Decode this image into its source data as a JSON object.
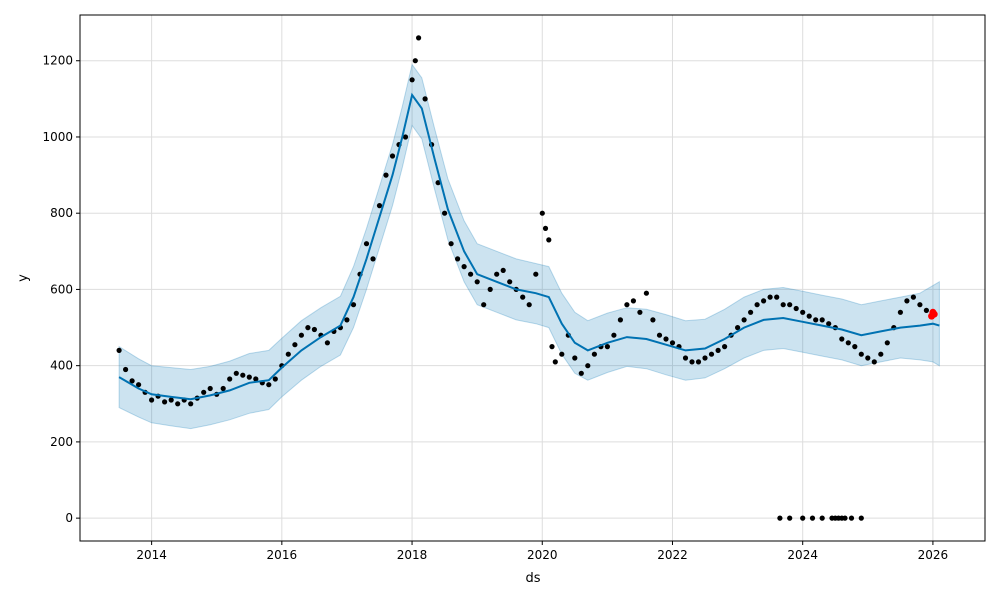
{
  "chart_data": {
    "type": "line",
    "title": "",
    "xlabel": "ds",
    "ylabel": "y",
    "xlim": [
      2012.9,
      2026.8
    ],
    "ylim": [
      -60,
      1320
    ],
    "grid": true,
    "x_ticks": [
      {
        "value": 2014,
        "label": "2014"
      },
      {
        "value": 2016,
        "label": "2016"
      },
      {
        "value": 2018,
        "label": "2018"
      },
      {
        "value": 2020,
        "label": "2020"
      },
      {
        "value": 2022,
        "label": "2022"
      },
      {
        "value": 2024,
        "label": "2024"
      },
      {
        "value": 2026,
        "label": "2026"
      }
    ],
    "y_ticks": [
      {
        "value": 0,
        "label": "0"
      },
      {
        "value": 200,
        "label": "200"
      },
      {
        "value": 400,
        "label": "400"
      },
      {
        "value": 600,
        "label": "600"
      },
      {
        "value": 800,
        "label": "800"
      },
      {
        "value": 1000,
        "label": "1000"
      },
      {
        "value": 1200,
        "label": "1200"
      }
    ],
    "colors": {
      "forecast_line": "#0072B2",
      "uncertainty_band": "#0072B2",
      "observed_points": "#000000",
      "highlight_points": "#ff0000",
      "grid": "#dddddd"
    },
    "series": [
      {
        "role": "forecast",
        "x": [
          2013.5,
          2013.8,
          2014.0,
          2014.3,
          2014.6,
          2014.9,
          2015.2,
          2015.5,
          2015.8,
          2016.0,
          2016.3,
          2016.6,
          2016.9,
          2017.1,
          2017.3,
          2017.5,
          2017.7,
          2017.85,
          2018.0,
          2018.15,
          2018.35,
          2018.55,
          2018.8,
          2019.0,
          2019.3,
          2019.6,
          2019.9,
          2020.1,
          2020.3,
          2020.5,
          2020.7,
          2021.0,
          2021.3,
          2021.6,
          2021.9,
          2022.2,
          2022.5,
          2022.8,
          2023.1,
          2023.4,
          2023.7,
          2024.0,
          2024.3,
          2024.6,
          2024.9,
          2025.2,
          2025.5,
          2025.8,
          2026.0,
          2026.1
        ],
        "y": [
          370,
          340,
          325,
          318,
          312,
          322,
          335,
          355,
          362,
          395,
          440,
          475,
          505,
          580,
          680,
          790,
          900,
          1000,
          1110,
          1075,
          940,
          810,
          700,
          640,
          620,
          600,
          590,
          580,
          510,
          460,
          440,
          460,
          475,
          470,
          455,
          440,
          445,
          470,
          500,
          520,
          525,
          515,
          505,
          495,
          480,
          490,
          500,
          505,
          510,
          505
        ],
        "lower": [
          290,
          265,
          250,
          242,
          235,
          245,
          258,
          275,
          285,
          318,
          362,
          398,
          428,
          500,
          600,
          710,
          820,
          920,
          1030,
          995,
          860,
          730,
          620,
          560,
          540,
          520,
          510,
          500,
          430,
          380,
          362,
          382,
          398,
          392,
          376,
          362,
          368,
          392,
          420,
          440,
          445,
          435,
          425,
          415,
          400,
          410,
          420,
          415,
          410,
          400
        ],
        "upper": [
          450,
          418,
          400,
          395,
          390,
          398,
          412,
          432,
          440,
          472,
          518,
          552,
          582,
          660,
          760,
          870,
          980,
          1080,
          1190,
          1155,
          1020,
          890,
          780,
          720,
          700,
          680,
          668,
          660,
          590,
          540,
          518,
          538,
          552,
          548,
          534,
          518,
          522,
          548,
          580,
          600,
          605,
          595,
          585,
          575,
          560,
          570,
          580,
          590,
          610,
          620
        ]
      },
      {
        "role": "observed",
        "x": [
          2013.5,
          2013.6,
          2013.7,
          2013.8,
          2013.9,
          2014.0,
          2014.1,
          2014.2,
          2014.3,
          2014.4,
          2014.5,
          2014.6,
          2014.7,
          2014.8,
          2014.9,
          2015.0,
          2015.1,
          2015.2,
          2015.3,
          2015.4,
          2015.5,
          2015.6,
          2015.7,
          2015.8,
          2015.9,
          2016.0,
          2016.1,
          2016.2,
          2016.3,
          2016.4,
          2016.5,
          2016.6,
          2016.7,
          2016.8,
          2016.9,
          2017.0,
          2017.1,
          2017.2,
          2017.3,
          2017.4,
          2017.5,
          2017.6,
          2017.7,
          2017.8,
          2017.9,
          2018.0,
          2018.05,
          2018.1,
          2018.2,
          2018.3,
          2018.4,
          2018.5,
          2018.6,
          2018.7,
          2018.8,
          2018.9,
          2019.0,
          2019.1,
          2019.2,
          2019.3,
          2019.4,
          2019.5,
          2019.6,
          2019.7,
          2019.8,
          2019.9,
          2020.0,
          2020.05,
          2020.1,
          2020.15,
          2020.2,
          2020.3,
          2020.4,
          2020.5,
          2020.6,
          2020.7,
          2020.8,
          2020.9,
          2021.0,
          2021.1,
          2021.2,
          2021.3,
          2021.4,
          2021.5,
          2021.6,
          2021.7,
          2021.8,
          2021.9,
          2022.0,
          2022.1,
          2022.2,
          2022.3,
          2022.4,
          2022.5,
          2022.6,
          2022.7,
          2022.8,
          2022.9,
          2023.0,
          2023.1,
          2023.2,
          2023.3,
          2023.4,
          2023.5,
          2023.6,
          2023.7,
          2023.8,
          2023.9,
          2024.0,
          2024.1,
          2024.2,
          2024.3,
          2024.4,
          2024.5,
          2024.6,
          2024.7,
          2024.8,
          2024.9,
          2025.0,
          2025.1,
          2025.2,
          2025.3,
          2025.4,
          2025.5,
          2025.6,
          2025.7,
          2025.8,
          2025.9
        ],
        "y": [
          440,
          390,
          360,
          350,
          330,
          310,
          320,
          305,
          310,
          300,
          310,
          300,
          315,
          330,
          340,
          325,
          340,
          365,
          380,
          375,
          370,
          365,
          355,
          350,
          365,
          400,
          430,
          455,
          480,
          500,
          495,
          480,
          460,
          490,
          500,
          520,
          560,
          640,
          720,
          680,
          820,
          900,
          950,
          980,
          1000,
          1150,
          1200,
          1260,
          1100,
          980,
          880,
          800,
          720,
          680,
          660,
          640,
          620,
          560,
          600,
          640,
          650,
          620,
          600,
          580,
          560,
          640,
          800,
          760,
          730,
          450,
          410,
          430,
          480,
          420,
          380,
          400,
          430,
          450,
          450,
          480,
          520,
          560,
          570,
          540,
          590,
          520,
          480,
          470,
          460,
          450,
          420,
          410,
          410,
          420,
          430,
          440,
          450,
          480,
          500,
          520,
          540,
          560,
          570,
          580,
          580,
          560,
          560,
          550,
          540,
          530,
          520,
          520,
          510,
          500,
          470,
          460,
          450,
          430,
          420,
          410,
          430,
          460,
          500,
          540,
          570,
          580,
          560,
          545
        ]
      },
      {
        "role": "observed_outliers",
        "x": [
          2023.65,
          2023.8,
          2024.0,
          2024.15,
          2024.3,
          2024.45,
          2024.5,
          2024.55,
          2024.6,
          2024.65,
          2024.75,
          2024.9
        ],
        "y": [
          0,
          0,
          0,
          0,
          0,
          0,
          0,
          0,
          0,
          0,
          0,
          0
        ]
      },
      {
        "role": "highlight",
        "x": [
          2025.98,
          2026.0,
          2026.02
        ],
        "y": [
          530,
          540,
          535
        ]
      }
    ]
  }
}
